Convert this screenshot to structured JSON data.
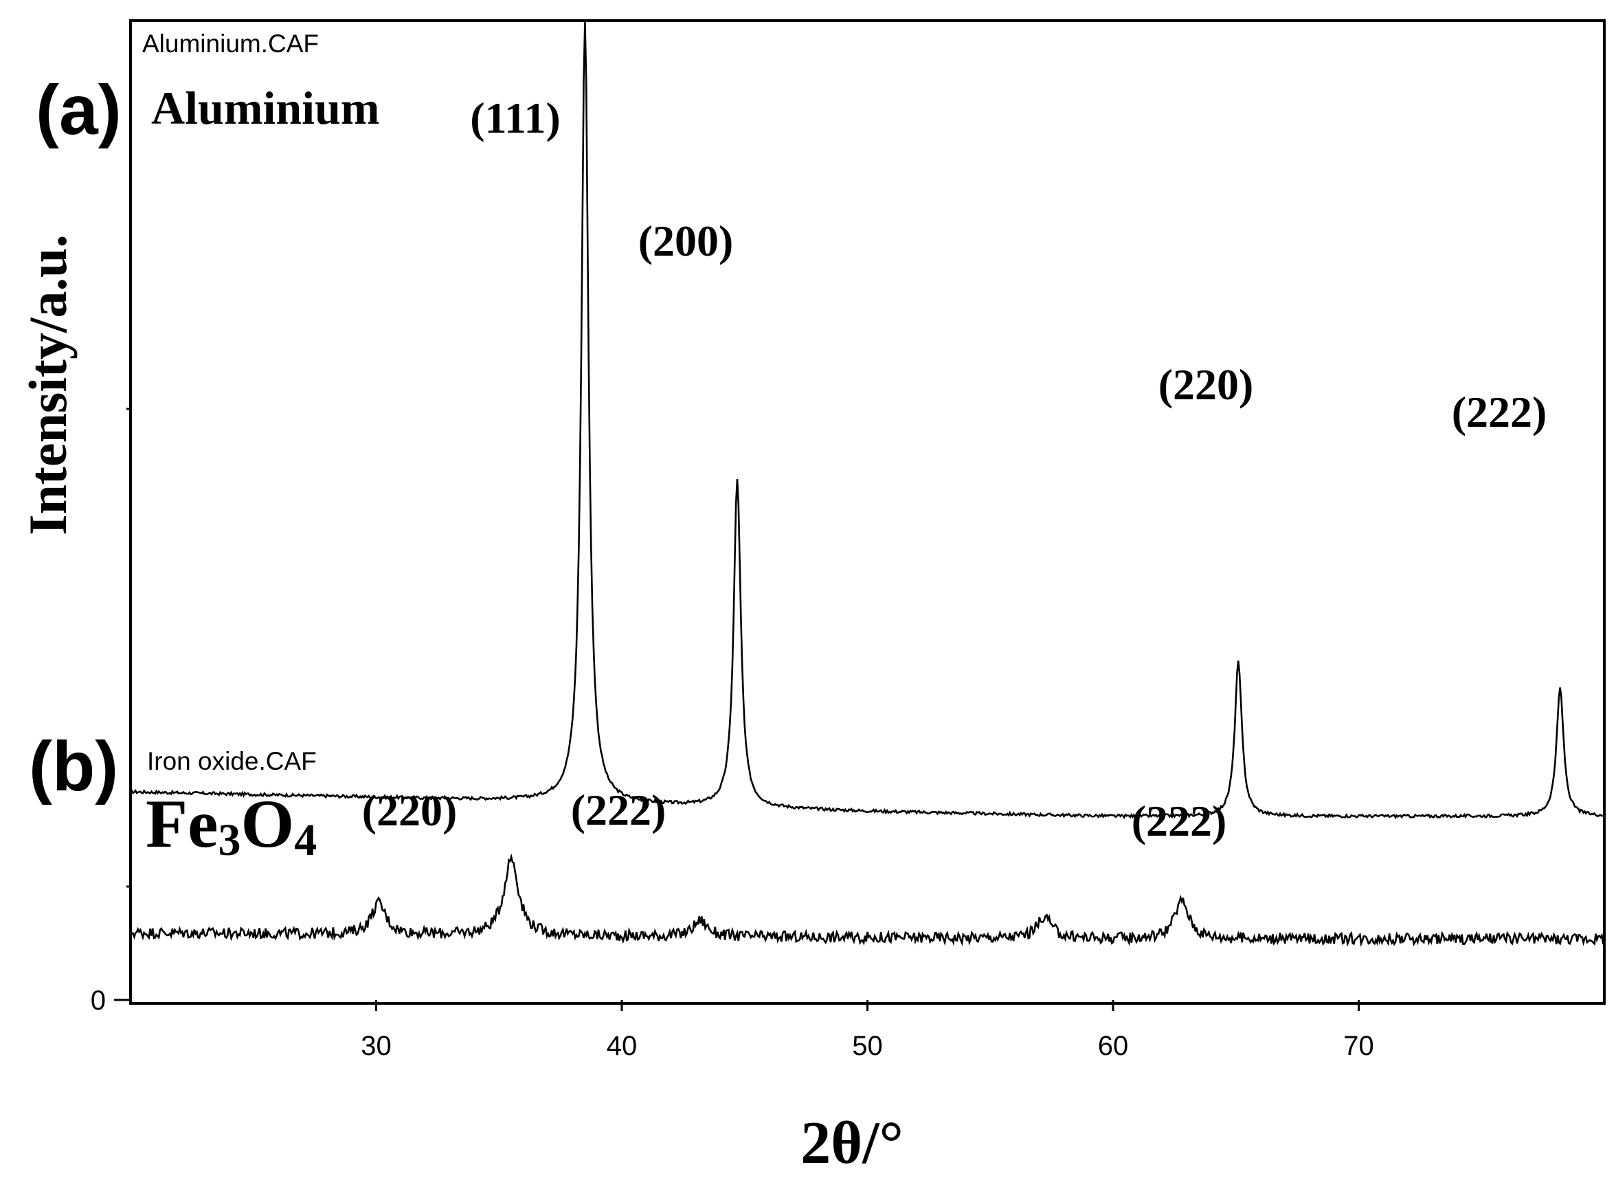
{
  "chart_data": {
    "type": "line",
    "xlabel": "2θ/°",
    "ylabel": "Intensity/a.u.",
    "xlim": [
      20,
      80
    ],
    "x_ticks": [
      30,
      40,
      50,
      60,
      70
    ],
    "y_ticks": [
      0
    ],
    "grid": false,
    "series": [
      {
        "name": "Aluminium.CAF",
        "panel_tag": "(a)",
        "label": "Aluminium",
        "color": "#000000",
        "baseline": [
          [
            20,
            17.0
          ],
          [
            38,
            16.2
          ],
          [
            40,
            16.0
          ],
          [
            50,
            15.4
          ],
          [
            60,
            15.0
          ],
          [
            70,
            15.0
          ],
          [
            80,
            15.0
          ]
        ],
        "peaks": [
          {
            "x": 38.5,
            "y": 80.0,
            "hkl": "(111)"
          },
          {
            "x": 44.7,
            "y": 42.5,
            "hkl": "(200)"
          },
          {
            "x": 65.1,
            "y": 27.6,
            "hkl": "(220)"
          },
          {
            "x": 78.2,
            "y": 25.5,
            "hkl": "(222)"
          }
        ]
      },
      {
        "name": "Iron oxide.CAF",
        "panel_tag": "(b)",
        "label_main": "Fe",
        "label_sub1": "3",
        "label_o": "O",
        "label_sub2": "4",
        "color": "#000000",
        "baseline": [
          [
            20,
            5.5
          ],
          [
            40,
            5.2
          ],
          [
            60,
            5.0
          ],
          [
            80,
            5.0
          ]
        ],
        "peaks": [
          {
            "x": 30.1,
            "y": 7.9,
            "hkl": "(220)"
          },
          {
            "x": 35.5,
            "y": 11.6,
            "hkl": ""
          },
          {
            "x": 43.2,
            "y": 6.5,
            "hkl": "(222)"
          },
          {
            "x": 57.2,
            "y": 6.8,
            "hkl": ""
          },
          {
            "x": 62.8,
            "y": 8.1,
            "hkl": "(222)"
          }
        ]
      }
    ]
  }
}
